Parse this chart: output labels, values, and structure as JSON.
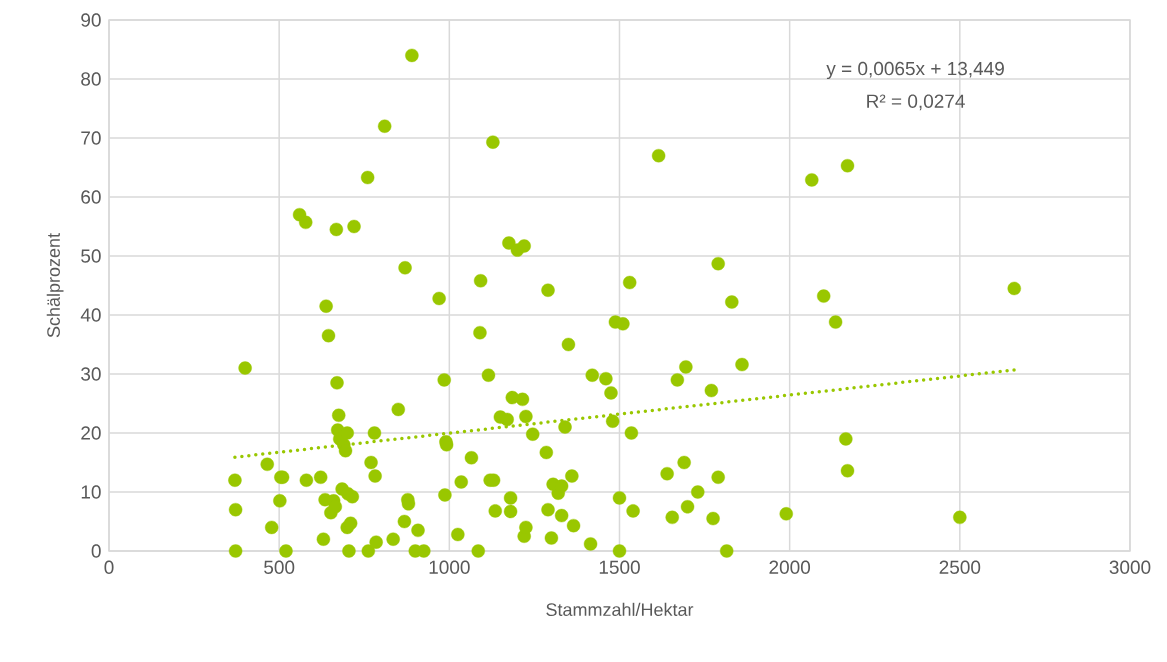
{
  "chart_data": {
    "type": "scatter",
    "xlabel": "Stammzahl/Hektar",
    "ylabel": "Schälprozent",
    "xlim": [
      0,
      3000
    ],
    "xticks": [
      0,
      500,
      1000,
      1500,
      2000,
      2500,
      3000
    ],
    "ylim": [
      0,
      90
    ],
    "yticks": [
      0,
      10,
      20,
      30,
      40,
      50,
      60,
      70,
      80,
      90
    ],
    "grid": true,
    "annotations": [
      "y = 0,0065x + 13,449",
      "R² = 0,0274"
    ],
    "series": [
      {
        "color": "#99c700",
        "marker": "circle",
        "x": [
          370,
          372,
          372,
          400,
          465,
          478,
          502,
          505,
          510,
          520,
          560,
          578,
          580,
          622,
          630,
          635,
          638,
          645,
          652,
          660,
          668,
          665,
          670,
          672,
          675,
          678,
          685,
          690,
          695,
          700,
          700,
          702,
          705,
          710,
          715,
          720,
          760,
          762,
          770,
          780,
          782,
          785,
          810,
          835,
          850,
          868,
          870,
          878,
          880,
          890,
          900,
          908,
          925,
          970,
          985,
          987,
          990,
          992,
          1025,
          1035,
          1065,
          1085,
          1090,
          1092,
          1115,
          1120,
          1128,
          1130,
          1135,
          1150,
          1170,
          1175,
          1180,
          1180,
          1185,
          1200,
          1215,
          1220,
          1220,
          1225,
          1225,
          1245,
          1285,
          1290,
          1290,
          1300,
          1305,
          1320,
          1330,
          1330,
          1340,
          1350,
          1360,
          1365,
          1415,
          1420,
          1460,
          1475,
          1480,
          1488,
          1500,
          1500,
          1510,
          1530,
          1535,
          1540,
          1615,
          1640,
          1655,
          1670,
          1690,
          1695,
          1700,
          1730,
          1770,
          1775,
          1790,
          1790,
          1815,
          1830,
          1860,
          1990,
          2065,
          2100,
          2135,
          2165,
          2170,
          2170,
          2500,
          2660
        ],
        "values": [
          12,
          7,
          0,
          31,
          14.7,
          4,
          8.5,
          12.5,
          12.5,
          0,
          57,
          55.7,
          12,
          12.5,
          2,
          8.7,
          41.5,
          36.5,
          6.5,
          8.5,
          54.5,
          7.5,
          28.5,
          20.5,
          23,
          19,
          10.5,
          18,
          17,
          20,
          4,
          9.7,
          0,
          4.7,
          9.2,
          55,
          63.3,
          0,
          15,
          20,
          12.7,
          1.5,
          72,
          2,
          24,
          5,
          48,
          8.7,
          8,
          84,
          0,
          3.5,
          0,
          42.8,
          29,
          9.5,
          18.5,
          18,
          2.8,
          11.7,
          15.8,
          0,
          37,
          45.8,
          29.8,
          12,
          69.3,
          12,
          6.8,
          22.7,
          22.3,
          52.2,
          9,
          6.7,
          26,
          51,
          25.7,
          51.7,
          2.5,
          4,
          22.8,
          19.8,
          16.7,
          44.2,
          7,
          2.2,
          11.3,
          9.8,
          11,
          6,
          21,
          35,
          12.7,
          4.3,
          1.2,
          29.8,
          29.2,
          26.8,
          22,
          38.8,
          9,
          0,
          38.5,
          45.5,
          20,
          6.8,
          67,
          13.1,
          5.7,
          29,
          15,
          31.2,
          7.5,
          10,
          27.2,
          5.5,
          48.7,
          12.5,
          0,
          42.2,
          31.6,
          6.3,
          62.9,
          43.2,
          38.8,
          19,
          65.3,
          13.6,
          5.7,
          44.5
        ]
      },
      {
        "type": "line",
        "color": "#99c700",
        "line_style": "dotted",
        "marker": "none",
        "x": [
          370,
          2660
        ],
        "values": [
          15.9,
          30.7
        ]
      }
    ]
  }
}
